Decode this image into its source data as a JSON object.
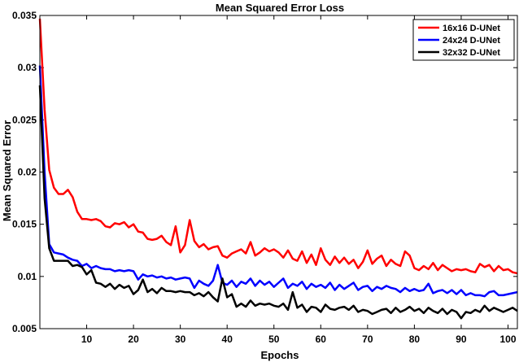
{
  "chart_data": {
    "type": "line",
    "title": "Mean Squared Error Loss",
    "xlabel": "Epochs",
    "ylabel": "Mean Squared Error",
    "xlim": [
      0,
      102
    ],
    "ylim": [
      0.005,
      0.035
    ],
    "xticks": [
      10,
      20,
      30,
      40,
      50,
      60,
      70,
      80,
      90,
      100
    ],
    "yticks": [
      0.005,
      0.01,
      0.015,
      0.02,
      0.025,
      0.03,
      0.035
    ],
    "ytick_labels": [
      "0.005",
      "0.01",
      "0.015",
      "0.02",
      "0.025",
      "0.03",
      "0.035"
    ],
    "grid": false,
    "legend_position": "top-right",
    "x": [
      0,
      1,
      2,
      3,
      4,
      5,
      6,
      7,
      8,
      9,
      10,
      11,
      12,
      13,
      14,
      15,
      16,
      17,
      18,
      19,
      20,
      21,
      22,
      23,
      24,
      25,
      26,
      27,
      28,
      29,
      30,
      31,
      32,
      33,
      34,
      35,
      36,
      37,
      38,
      39,
      40,
      41,
      42,
      43,
      44,
      45,
      46,
      47,
      48,
      49,
      50,
      51,
      52,
      53,
      54,
      55,
      56,
      57,
      58,
      59,
      60,
      61,
      62,
      63,
      64,
      65,
      66,
      67,
      68,
      69,
      70,
      71,
      72,
      73,
      74,
      75,
      76,
      77,
      78,
      79,
      80,
      81,
      82,
      83,
      84,
      85,
      86,
      87,
      88,
      89,
      90,
      91,
      92,
      93,
      94,
      95,
      96,
      97,
      98,
      99,
      100,
      101,
      102
    ],
    "series": [
      {
        "name": "16x16 D-UNet",
        "color": "#ff0000",
        "values": [
          0.0347,
          0.026,
          0.0202,
          0.0185,
          0.0179,
          0.0179,
          0.0183,
          0.0176,
          0.0162,
          0.0155,
          0.0155,
          0.0154,
          0.0155,
          0.0153,
          0.0148,
          0.0147,
          0.0151,
          0.015,
          0.0152,
          0.0147,
          0.015,
          0.0143,
          0.0142,
          0.0136,
          0.0135,
          0.0136,
          0.0139,
          0.0133,
          0.013,
          0.0148,
          0.0123,
          0.013,
          0.0154,
          0.0134,
          0.0128,
          0.0131,
          0.0126,
          0.0128,
          0.0129,
          0.012,
          0.0118,
          0.0122,
          0.0124,
          0.0126,
          0.0122,
          0.0133,
          0.012,
          0.0123,
          0.0127,
          0.0124,
          0.0126,
          0.0123,
          0.0118,
          0.0125,
          0.0117,
          0.0115,
          0.0124,
          0.0113,
          0.0121,
          0.0111,
          0.0127,
          0.0116,
          0.0111,
          0.0119,
          0.0113,
          0.0118,
          0.0112,
          0.0116,
          0.0108,
          0.0114,
          0.0125,
          0.0112,
          0.0117,
          0.012,
          0.011,
          0.0116,
          0.0112,
          0.011,
          0.0124,
          0.012,
          0.0108,
          0.0106,
          0.011,
          0.0107,
          0.0113,
          0.0106,
          0.0111,
          0.0108,
          0.0105,
          0.0107,
          0.0106,
          0.0107,
          0.0105,
          0.0104,
          0.0112,
          0.0109,
          0.0111,
          0.0105,
          0.011,
          0.0106,
          0.0107,
          0.0104,
          0.0103
        ]
      },
      {
        "name": "24x24 D-UNet",
        "color": "#0000ff",
        "values": [
          0.0302,
          0.02,
          0.0131,
          0.0123,
          0.0122,
          0.0121,
          0.0118,
          0.0116,
          0.0115,
          0.011,
          0.0112,
          0.0108,
          0.011,
          0.0108,
          0.0107,
          0.0107,
          0.0105,
          0.0106,
          0.0105,
          0.0106,
          0.0105,
          0.0097,
          0.0102,
          0.01,
          0.0101,
          0.0099,
          0.01,
          0.0098,
          0.0099,
          0.0097,
          0.0098,
          0.0099,
          0.0098,
          0.0089,
          0.0096,
          0.0093,
          0.0091,
          0.0096,
          0.0111,
          0.0094,
          0.0092,
          0.0096,
          0.009,
          0.0095,
          0.0093,
          0.0098,
          0.0091,
          0.0096,
          0.0092,
          0.0095,
          0.009,
          0.0094,
          0.0098,
          0.0089,
          0.0093,
          0.0091,
          0.0095,
          0.0088,
          0.0093,
          0.009,
          0.0092,
          0.0089,
          0.0094,
          0.0087,
          0.0092,
          0.0088,
          0.0091,
          0.0094,
          0.0087,
          0.009,
          0.0091,
          0.0086,
          0.009,
          0.0088,
          0.0091,
          0.0089,
          0.0088,
          0.0085,
          0.0089,
          0.0086,
          0.0088,
          0.0086,
          0.0087,
          0.0093,
          0.0084,
          0.0086,
          0.0087,
          0.0084,
          0.0087,
          0.0083,
          0.0087,
          0.0082,
          0.0084,
          0.0082,
          0.0082,
          0.0081,
          0.0085,
          0.0086,
          0.0082,
          0.0082,
          0.0083,
          0.0084,
          0.0085
        ]
      },
      {
        "name": "32x32 D-UNet",
        "color": "#000000",
        "values": [
          0.0283,
          0.0175,
          0.0127,
          0.0115,
          0.0115,
          0.0115,
          0.0115,
          0.011,
          0.0111,
          0.0109,
          0.0102,
          0.0106,
          0.0094,
          0.0093,
          0.009,
          0.0093,
          0.0088,
          0.0092,
          0.0089,
          0.0091,
          0.0083,
          0.0087,
          0.0097,
          0.0085,
          0.0088,
          0.0084,
          0.0089,
          0.0086,
          0.0086,
          0.0085,
          0.0086,
          0.0085,
          0.0085,
          0.0082,
          0.0084,
          0.0081,
          0.0085,
          0.008,
          0.0076,
          0.0098,
          0.008,
          0.0083,
          0.0071,
          0.0074,
          0.0071,
          0.0077,
          0.0072,
          0.0074,
          0.0073,
          0.0074,
          0.0072,
          0.0071,
          0.0074,
          0.0068,
          0.0085,
          0.007,
          0.0073,
          0.0066,
          0.0071,
          0.007,
          0.0066,
          0.0073,
          0.0069,
          0.0068,
          0.007,
          0.0071,
          0.0068,
          0.0072,
          0.0066,
          0.0068,
          0.0067,
          0.0064,
          0.0066,
          0.0068,
          0.0069,
          0.0065,
          0.007,
          0.0066,
          0.0068,
          0.0071,
          0.0067,
          0.0069,
          0.0065,
          0.007,
          0.0067,
          0.0065,
          0.0069,
          0.0064,
          0.0068,
          0.0066,
          0.006,
          0.0066,
          0.0065,
          0.0068,
          0.0066,
          0.0072,
          0.0067,
          0.007,
          0.0068,
          0.0066,
          0.0068,
          0.007,
          0.0067
        ]
      }
    ]
  }
}
